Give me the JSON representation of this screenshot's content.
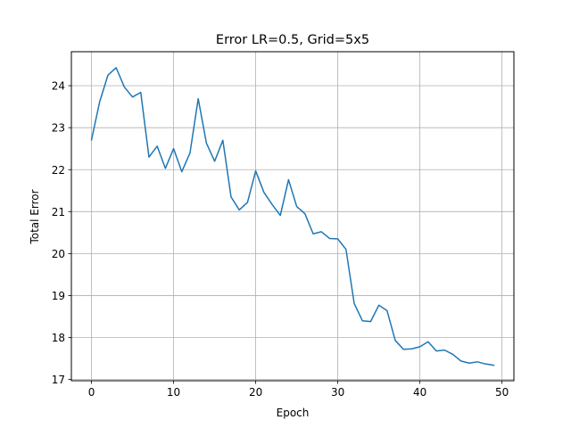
{
  "chart_data": {
    "type": "line",
    "title": "Error LR=0.5, Grid=5x5",
    "xlabel": "Epoch",
    "ylabel": "Total Error",
    "xlim": [
      -2.45,
      51.45
    ],
    "ylim": [
      16.97,
      24.81
    ],
    "xticks": [
      0,
      10,
      20,
      30,
      40,
      50
    ],
    "yticks": [
      17,
      18,
      19,
      20,
      21,
      22,
      23,
      24
    ],
    "grid": true,
    "series": [
      {
        "color": "#1f77b4",
        "x": [
          0,
          1,
          2,
          3,
          4,
          5,
          6,
          7,
          8,
          9,
          10,
          11,
          12,
          13,
          14,
          15,
          16,
          17,
          18,
          19,
          20,
          21,
          22,
          23,
          24,
          25,
          26,
          27,
          28,
          29,
          30,
          31,
          32,
          33,
          34,
          35,
          36,
          37,
          38,
          39,
          40,
          41,
          42,
          43,
          44,
          45,
          46,
          47,
          48,
          49
        ],
        "y": [
          22.71,
          23.62,
          24.25,
          24.43,
          23.97,
          23.73,
          23.84,
          22.3,
          22.56,
          22.03,
          22.5,
          21.95,
          22.4,
          23.69,
          22.63,
          22.2,
          22.7,
          21.35,
          21.04,
          21.22,
          21.97,
          21.46,
          21.17,
          20.91,
          21.76,
          21.12,
          20.95,
          20.47,
          20.52,
          20.36,
          20.35,
          20.1,
          18.81,
          18.4,
          18.38,
          18.77,
          18.64,
          17.93,
          17.72,
          17.73,
          17.78,
          17.9,
          17.68,
          17.7,
          17.6,
          17.44,
          17.39,
          17.42,
          17.37,
          17.34
        ]
      }
    ]
  }
}
